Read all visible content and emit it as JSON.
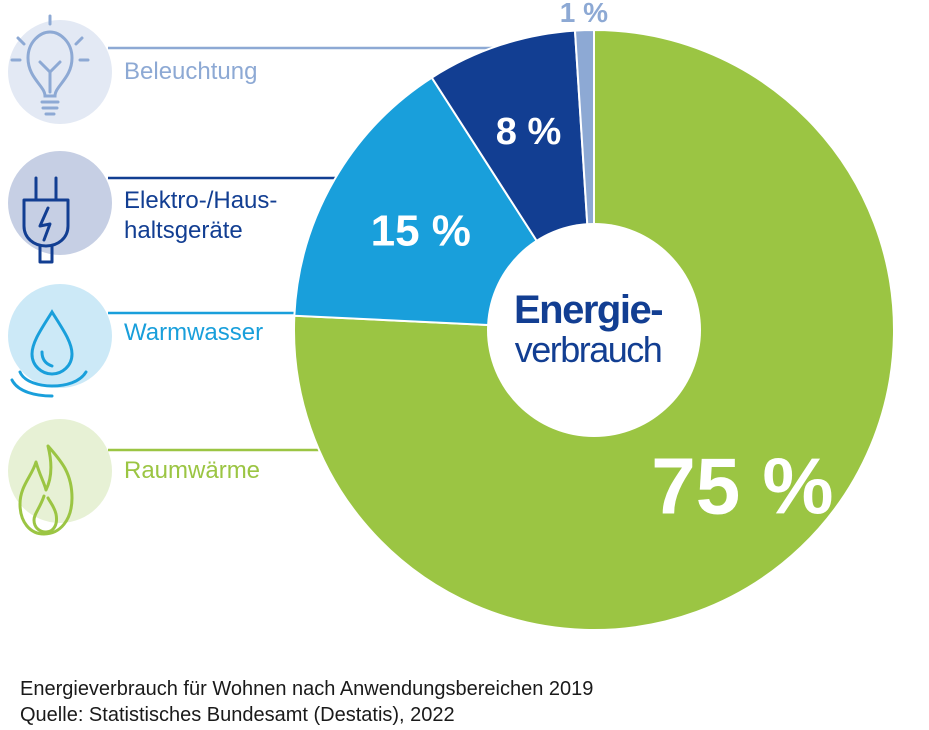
{
  "chart_data": {
    "type": "pie",
    "variant": "donut",
    "center_label": {
      "line1": "Energie-",
      "line2": "verbrauch"
    },
    "categories": [
      "Raumwärme",
      "Warmwasser",
      "Elektro-/Haushaltsgeräte",
      "Beleuchtung"
    ],
    "label_lines": [
      [
        "Raumwärme"
      ],
      [
        "Warmwasser"
      ],
      [
        "Elektro-/Haus-",
        "haltsgeräte"
      ],
      [
        "Beleuchtung"
      ]
    ],
    "values": [
      75,
      15,
      8,
      1
    ],
    "value_labels": [
      "75 %",
      "15 %",
      "8 %",
      "1 %"
    ],
    "unit": "%",
    "colors": [
      "#9bc543",
      "#199fdb",
      "#123e92",
      "#8da9d4"
    ],
    "icons": [
      "flame-icon",
      "water-drop-icon",
      "plug-icon",
      "lightbulb-icon"
    ]
  },
  "footer": {
    "caption": "Energieverbrauch für Wohnen nach Anwendungsbereichen 2019",
    "source": "Quelle: Statistisches Bundesamt (Destatis), 2022"
  }
}
